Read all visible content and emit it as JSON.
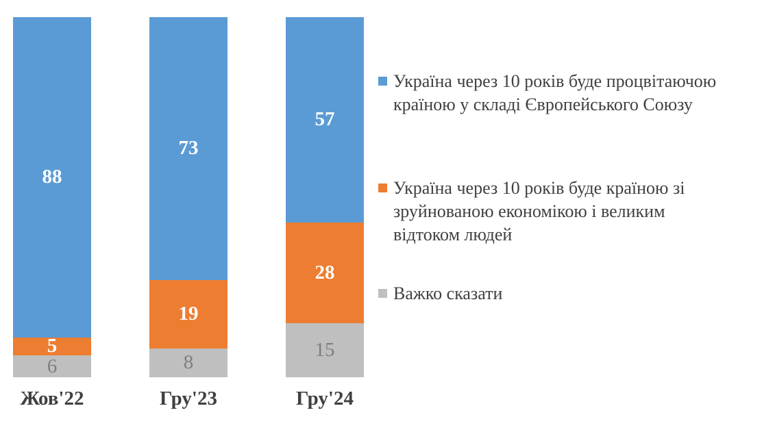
{
  "chart_data": {
    "type": "bar",
    "stacked": true,
    "percent_stacked": true,
    "title": "",
    "xlabel": "",
    "ylabel": "",
    "ylim": [
      0,
      100
    ],
    "grid": false,
    "legend_position": "right",
    "categories": [
      "Жов'22",
      "Гру'23",
      "Гру'24"
    ],
    "series": [
      {
        "name": "Україна через 10 років буде процвітаючою країною у складі Європейського Союзу",
        "legend_lines": [
          "Україна через 10 років буде процвітаючою",
          "країною у складі Європейського Союзу"
        ],
        "color": "#5B9BD5",
        "label_color": "#FFFFFF",
        "label_bold": true,
        "values": [
          88,
          73,
          57
        ]
      },
      {
        "name": "Україна через 10 років буде країною зі зруйнованою економікою і великим відтоком людей",
        "legend_lines": [
          "Україна через 10 років буде країною зі",
          "зруйнованою економікою і великим",
          "відтоком людей"
        ],
        "color": "#ED7D31",
        "label_color": "#FFFFFF",
        "label_bold": true,
        "values": [
          5,
          19,
          28
        ]
      },
      {
        "name": "Важко сказати",
        "legend_lines": [
          "Важко сказати"
        ],
        "color": "#BFBFBF",
        "label_color": "#7F7F7F",
        "label_bold": false,
        "values": [
          6,
          8,
          15
        ]
      }
    ],
    "text_color": "#404040",
    "background_color": "#FFFFFF"
  }
}
